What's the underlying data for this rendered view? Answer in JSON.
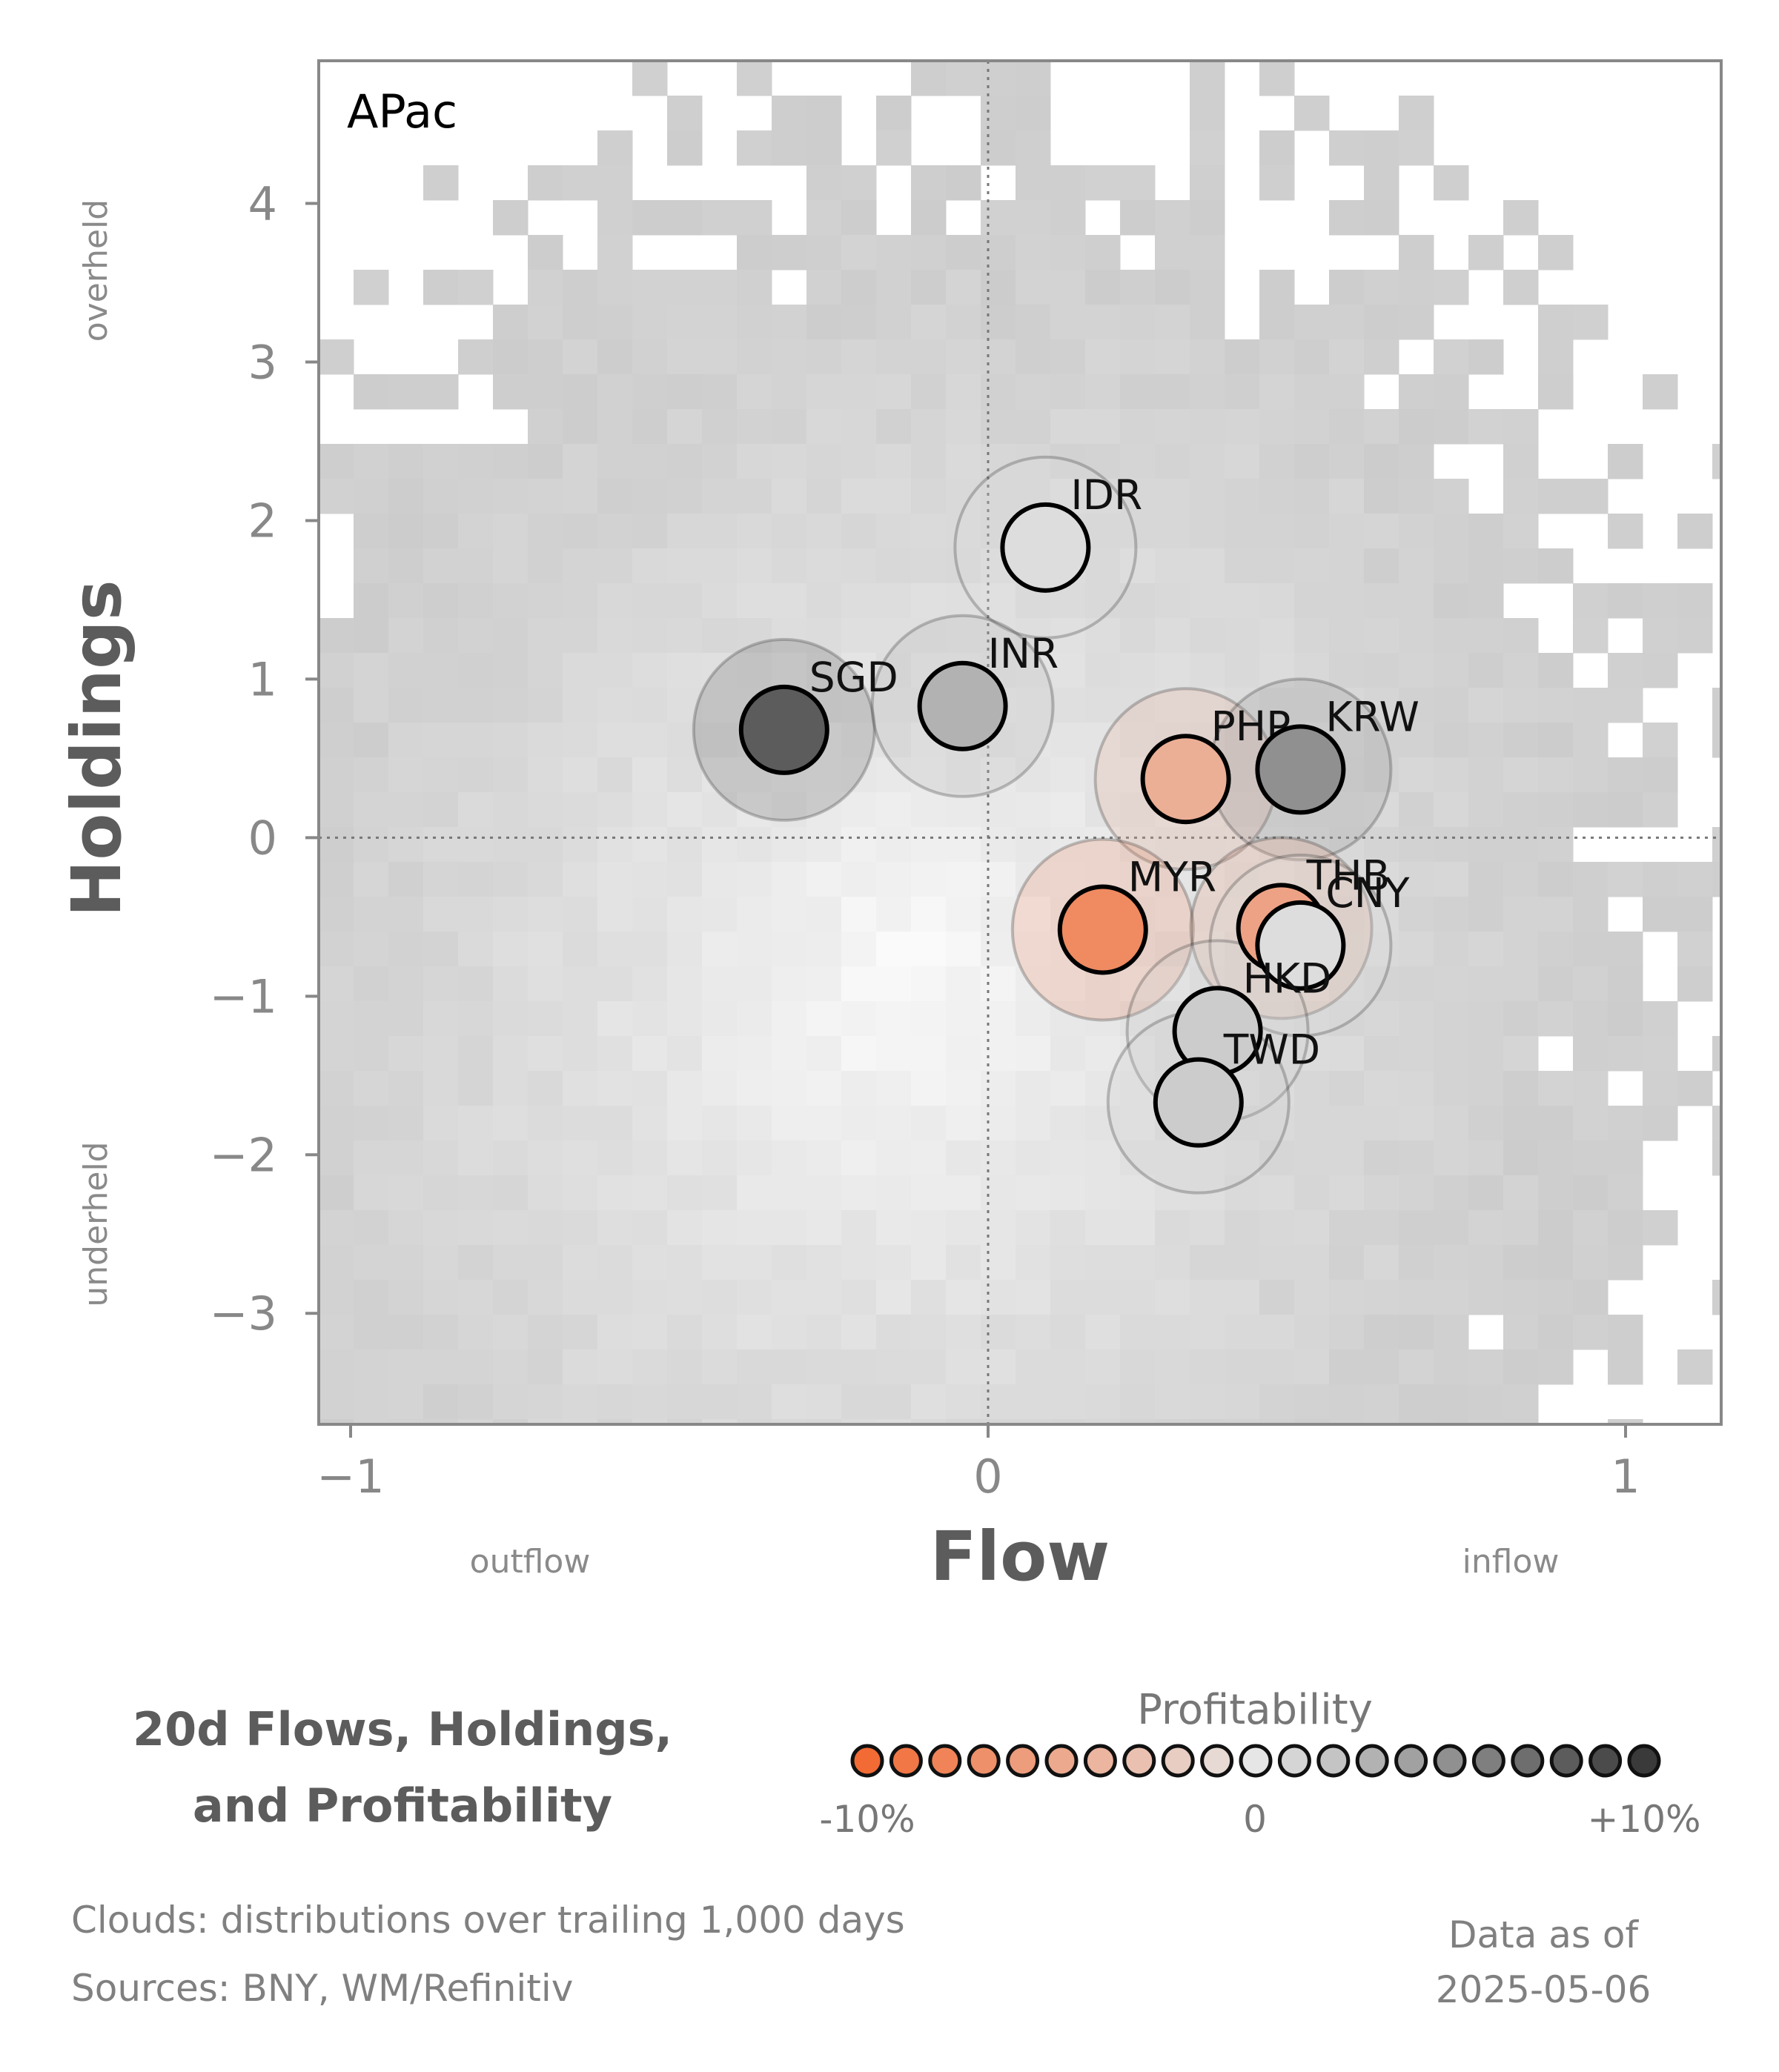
{
  "chart_data": {
    "type": "scatter",
    "panel_label": "APac",
    "xlabel": "Flow",
    "ylabel": "Holdings",
    "xlim": [
      -1.05,
      1.15
    ],
    "ylim": [
      -3.7,
      4.9
    ],
    "x_ticks": [
      {
        "value": -1,
        "label": "−1"
      },
      {
        "value": 0,
        "label": "0"
      },
      {
        "value": 1,
        "label": "1"
      }
    ],
    "y_ticks": [
      {
        "value": 4,
        "label": "4"
      },
      {
        "value": 3,
        "label": "3"
      },
      {
        "value": 2,
        "label": "2"
      },
      {
        "value": 1,
        "label": "1"
      },
      {
        "value": 0,
        "label": "0"
      },
      {
        "value": -1,
        "label": "−1"
      },
      {
        "value": -2,
        "label": "−2"
      },
      {
        "value": -3,
        "label": "−3"
      }
    ],
    "x_side_labels": {
      "left": "outflow",
      "right": "inflow"
    },
    "y_side_labels": {
      "top": "overheld",
      "bottom": "underheld"
    },
    "reference_lines": {
      "x": 0,
      "y": 0
    },
    "cloud_note": "Clouds:  distributions over trailing 1,000 days",
    "color_scale": {
      "title": "Profitability",
      "min_label": "-10%",
      "mid_label": "0",
      "max_label": "+10%",
      "min_value": -10,
      "max_value": 10,
      "swatch_count": 21,
      "low_color": "#f26b35",
      "mid_color": "#e6e6e6",
      "high_color": "#3a3a3a"
    },
    "points": [
      {
        "label": "IDR",
        "x": 0.09,
        "y": 1.83,
        "profitability": 0.5
      },
      {
        "label": "SGD",
        "x": -0.32,
        "y": 0.68,
        "profitability": 8.0
      },
      {
        "label": "INR",
        "x": -0.04,
        "y": 0.83,
        "profitability": 3.0
      },
      {
        "label": "PHP",
        "x": 0.31,
        "y": 0.37,
        "profitability": -4.5
      },
      {
        "label": "KRW",
        "x": 0.49,
        "y": 0.43,
        "profitability": 5.0
      },
      {
        "label": "MYR",
        "x": 0.18,
        "y": -0.58,
        "profitability": -7.5
      },
      {
        "label": "THB",
        "x": 0.46,
        "y": -0.57,
        "profitability": -5.5
      },
      {
        "label": "CNY",
        "x": 0.49,
        "y": -0.68,
        "profitability": 0.5
      },
      {
        "label": "HKD",
        "x": 0.36,
        "y": -1.22,
        "profitability": 1.5
      },
      {
        "label": "TWD",
        "x": 0.33,
        "y": -1.67,
        "profitability": 1.5
      }
    ]
  },
  "legend": {
    "title_line1": "20d Flows, Holdings,",
    "title_line2": "and Profitability"
  },
  "footer": {
    "sources": "Sources:  BNY, WM/Refinitiv",
    "date_line1": "Data as of",
    "date_line2": "2025-05-06"
  }
}
